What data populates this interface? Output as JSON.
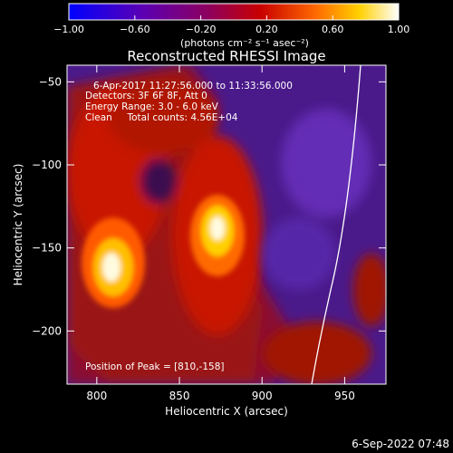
{
  "chart_data": {
    "type": "heatmap",
    "title": "Reconstructed RHESSI Image",
    "xlabel": "Heliocentric X (arcsec)",
    "ylabel": "Heliocentric Y (arcsec)",
    "xlim": [
      782,
      975
    ],
    "ylim": [
      -232,
      -40
    ],
    "x_ticks": [
      800,
      850,
      900,
      950
    ],
    "y_ticks": [
      -50,
      -100,
      -150,
      -200
    ],
    "colorbar": {
      "range": [
        -1.0,
        1.0
      ],
      "ticks": [
        "-1.00",
        "-0.60",
        "-0.20",
        "0.20",
        "0.60",
        "1.00"
      ],
      "label": "(photons cm⁻² s⁻¹ asec⁻²)",
      "colors": [
        "#0000ff",
        "#5a00b4",
        "#8c0060",
        "#c80000",
        "#ff6a00",
        "#ffd000",
        "#ffffff"
      ]
    },
    "annotations": {
      "time_range": "6-Apr-2017 11:27:56.000 to 11:33:56.000",
      "detectors": "Detectors: 3F 6F 8F, Att 0",
      "energy": "Energy Range: 3.0 - 6.0 keV",
      "clean": "Clean     Total counts: 4.56E+04",
      "peak": "Position of Peak = [810,-158]"
    },
    "sources": [
      {
        "x": 810,
        "y": -158,
        "peak": 1.0
      },
      {
        "x": 872,
        "y": -138,
        "peak": 0.95
      }
    ],
    "limb_color": "#ffffff",
    "timestamp": "6-Sep-2022 07:48"
  }
}
